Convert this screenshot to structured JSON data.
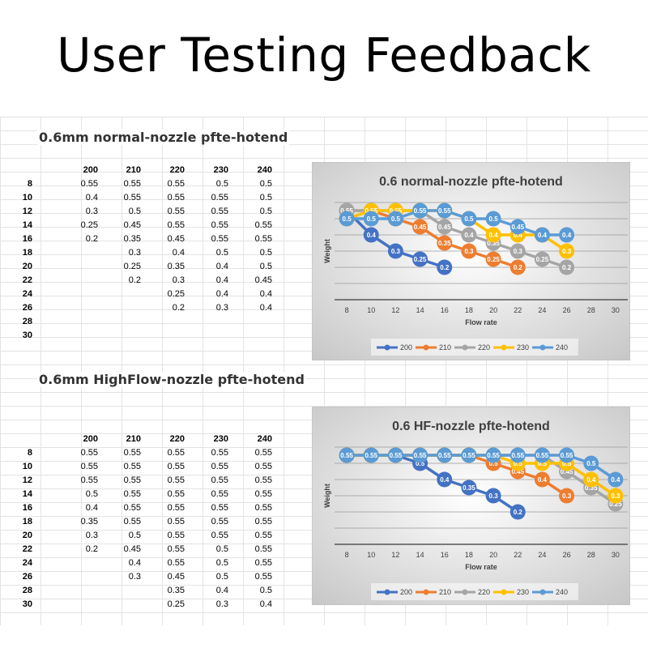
{
  "page_title": "User Testing Feedback",
  "sections": [
    {
      "sheet_title": "0.6mm normal-nozzle pfte-hotend",
      "columns": [
        "200",
        "210",
        "220",
        "230",
        "240"
      ],
      "row_labels": [
        "8",
        "10",
        "12",
        "14",
        "16",
        "18",
        "20",
        "22",
        "24",
        "26",
        "28",
        "30"
      ],
      "rows": [
        [
          "0.55",
          "0.55",
          "0.55",
          "0.5",
          "0.5"
        ],
        [
          "0.4",
          "0.55",
          "0.55",
          "0.55",
          "0.5"
        ],
        [
          "0.3",
          "0.5",
          "0.55",
          "0.55",
          "0.5"
        ],
        [
          "0.25",
          "0.45",
          "0.55",
          "0.55",
          "0.55"
        ],
        [
          "0.2",
          "0.35",
          "0.45",
          "0.55",
          "0.55"
        ],
        [
          "",
          "0.3",
          "0.4",
          "0.5",
          "0.5"
        ],
        [
          "",
          "0.25",
          "0.35",
          "0.4",
          "0.5"
        ],
        [
          "",
          "0.2",
          "0.3",
          "0.4",
          "0.45"
        ],
        [
          "",
          "",
          "0.25",
          "0.4",
          "0.4"
        ],
        [
          "",
          "",
          "0.2",
          "0.3",
          "0.4"
        ],
        [
          "",
          "",
          "",
          "",
          ""
        ],
        [
          "",
          "",
          "",
          "",
          ""
        ]
      ]
    },
    {
      "sheet_title": "0.6mm HighFlow-nozzle pfte-hotend",
      "columns": [
        "200",
        "210",
        "220",
        "230",
        "240"
      ],
      "row_labels": [
        "8",
        "10",
        "12",
        "14",
        "16",
        "18",
        "20",
        "22",
        "24",
        "26",
        "28",
        "30"
      ],
      "rows": [
        [
          "0.55",
          "0.55",
          "0.55",
          "0.55",
          "0.55"
        ],
        [
          "0.55",
          "0.55",
          "0.55",
          "0.55",
          "0.55"
        ],
        [
          "0.55",
          "0.55",
          "0.55",
          "0.55",
          "0.55"
        ],
        [
          "0.5",
          "0.55",
          "0.55",
          "0.55",
          "0.55"
        ],
        [
          "0.4",
          "0.55",
          "0.55",
          "0.55",
          "0.55"
        ],
        [
          "0.35",
          "0.55",
          "0.55",
          "0.55",
          "0.55"
        ],
        [
          "0.3",
          "0.5",
          "0.55",
          "0.55",
          "0.55"
        ],
        [
          "0.2",
          "0.45",
          "0.55",
          "0.5",
          "0.55"
        ],
        [
          "",
          "0.4",
          "0.55",
          "0.5",
          "0.55"
        ],
        [
          "",
          "0.3",
          "0.45",
          "0.5",
          "0.55"
        ],
        [
          "",
          "",
          "0.35",
          "0.4",
          "0.5"
        ],
        [
          "",
          "",
          "0.25",
          "0.3",
          "0.4"
        ]
      ]
    }
  ],
  "chart_data": [
    {
      "type": "line",
      "title": "0.6 normal-nozzle pfte-hotend",
      "xlabel": "Flow rate",
      "ylabel": "Weight",
      "x": [
        8,
        10,
        12,
        14,
        16,
        18,
        20,
        22,
        24,
        26,
        28,
        30
      ],
      "ylim": [
        0,
        0.6
      ],
      "grid": true,
      "legend_position": "bottom",
      "series": [
        {
          "name": "200",
          "color": "#4472c4",
          "values": [
            0.55,
            0.4,
            0.3,
            0.25,
            0.2,
            null,
            null,
            null,
            null,
            null,
            null,
            null
          ]
        },
        {
          "name": "210",
          "color": "#ed7d31",
          "values": [
            0.55,
            0.55,
            0.5,
            0.45,
            0.35,
            0.3,
            0.25,
            0.2,
            null,
            null,
            null,
            null
          ]
        },
        {
          "name": "220",
          "color": "#a5a5a5",
          "values": [
            0.55,
            0.55,
            0.55,
            0.55,
            0.45,
            0.4,
            0.35,
            0.3,
            0.25,
            0.2,
            null,
            null
          ]
        },
        {
          "name": "230",
          "color": "#ffc000",
          "values": [
            0.5,
            0.55,
            0.55,
            0.55,
            0.55,
            0.5,
            0.4,
            0.4,
            0.4,
            0.3,
            null,
            null
          ]
        },
        {
          "name": "240",
          "color": "#5b9bd5",
          "values": [
            0.5,
            0.5,
            0.5,
            0.55,
            0.55,
            0.5,
            0.5,
            0.45,
            0.4,
            0.4,
            null,
            null
          ]
        }
      ]
    },
    {
      "type": "line",
      "title": "0.6 HF-nozzle pfte-hotend",
      "xlabel": "Flow rate",
      "ylabel": "Weight",
      "x": [
        8,
        10,
        12,
        14,
        16,
        18,
        20,
        22,
        24,
        26,
        28,
        30
      ],
      "ylim": [
        0,
        0.6
      ],
      "grid": true,
      "legend_position": "bottom",
      "series": [
        {
          "name": "200",
          "color": "#4472c4",
          "values": [
            0.55,
            0.55,
            0.55,
            0.5,
            0.4,
            0.35,
            0.3,
            0.2,
            null,
            null,
            null,
            null
          ]
        },
        {
          "name": "210",
          "color": "#ed7d31",
          "values": [
            0.55,
            0.55,
            0.55,
            0.55,
            0.55,
            0.55,
            0.5,
            0.45,
            0.4,
            0.3,
            null,
            null
          ]
        },
        {
          "name": "220",
          "color": "#a5a5a5",
          "values": [
            0.55,
            0.55,
            0.55,
            0.55,
            0.55,
            0.55,
            0.55,
            0.55,
            0.55,
            0.45,
            0.35,
            0.25
          ]
        },
        {
          "name": "230",
          "color": "#ffc000",
          "values": [
            0.55,
            0.55,
            0.55,
            0.55,
            0.55,
            0.55,
            0.55,
            0.5,
            0.5,
            0.5,
            0.4,
            0.3
          ]
        },
        {
          "name": "240",
          "color": "#5b9bd5",
          "values": [
            0.55,
            0.55,
            0.55,
            0.55,
            0.55,
            0.55,
            0.55,
            0.55,
            0.55,
            0.55,
            0.5,
            0.4
          ]
        }
      ]
    }
  ]
}
